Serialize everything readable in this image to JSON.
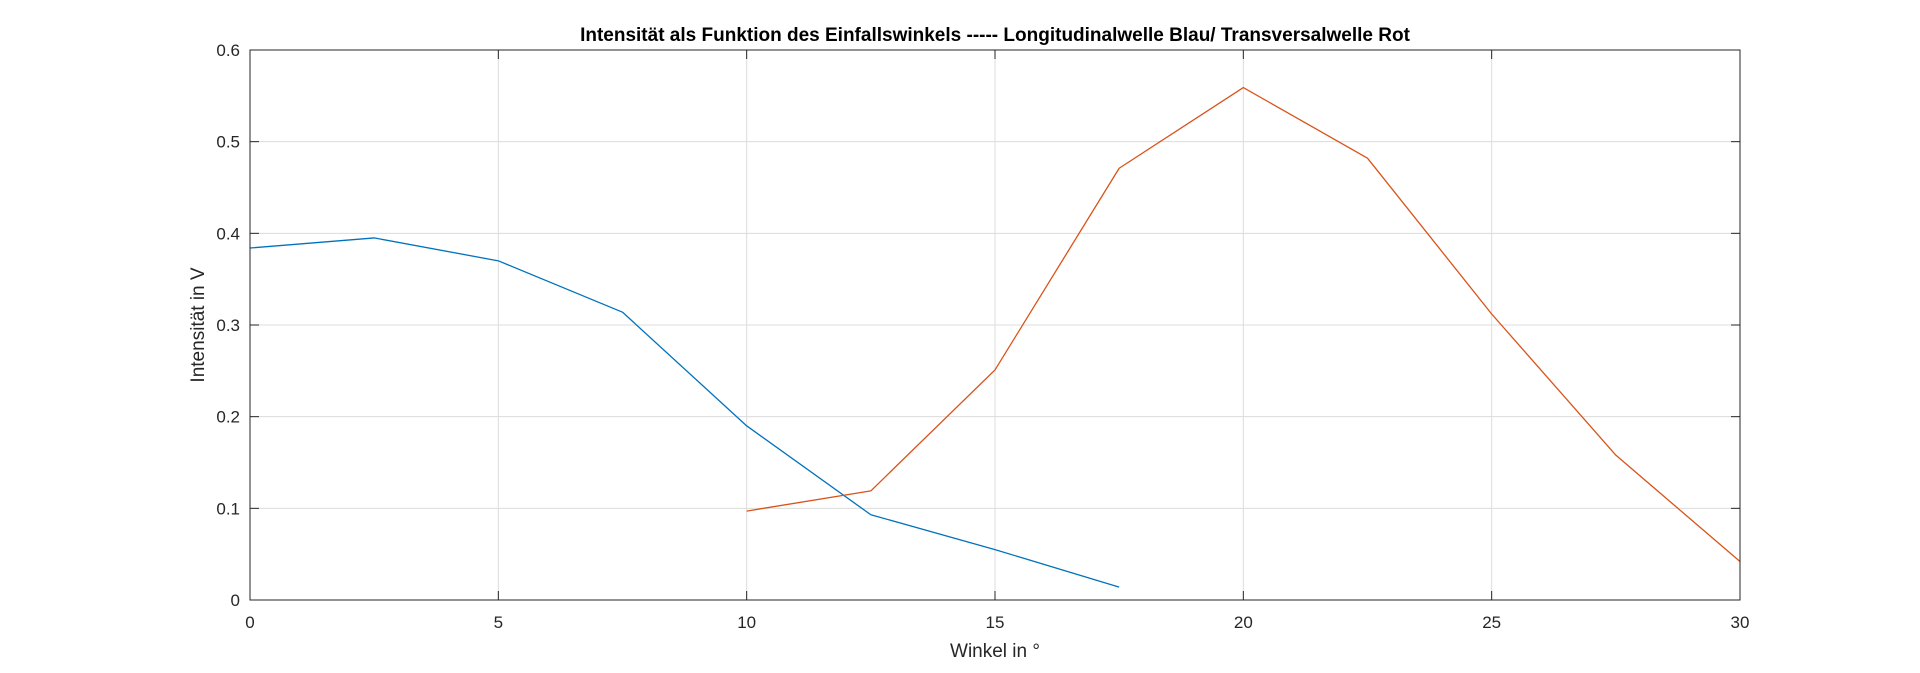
{
  "chart_data": {
    "type": "line",
    "title": "Intensität als Funktion des Einfallswinkels ----- Longitudinalwelle Blau/ Transversalwelle Rot",
    "xlabel": "Winkel in °",
    "ylabel": "Intensität in V",
    "xlim": [
      0,
      30
    ],
    "ylim": [
      0,
      0.6
    ],
    "xticks": [
      0,
      5,
      10,
      15,
      20,
      25,
      30
    ],
    "xtick_labels": [
      "0",
      "5",
      "10",
      "15",
      "20",
      "25",
      "30"
    ],
    "yticks": [
      0,
      0.1,
      0.2,
      0.3,
      0.4,
      0.5,
      0.6
    ],
    "ytick_labels": [
      "0",
      "0.1",
      "0.2",
      "0.3",
      "0.4",
      "0.5",
      "0.6"
    ],
    "grid": true,
    "series": [
      {
        "color": "#0072BD",
        "x": [
          0,
          2.5,
          5,
          7.5,
          10,
          12.5,
          15,
          17.5
        ],
        "y": [
          0.384,
          0.395,
          0.37,
          0.314,
          0.19,
          0.093,
          0.055,
          0.014
        ]
      },
      {
        "color": "#D95319",
        "x": [
          10,
          12.5,
          15,
          17.5,
          20,
          22.5,
          25,
          27.5,
          30
        ],
        "y": [
          0.097,
          0.119,
          0.251,
          0.471,
          0.559,
          0.482,
          0.312,
          0.158,
          0.042
        ]
      }
    ]
  }
}
